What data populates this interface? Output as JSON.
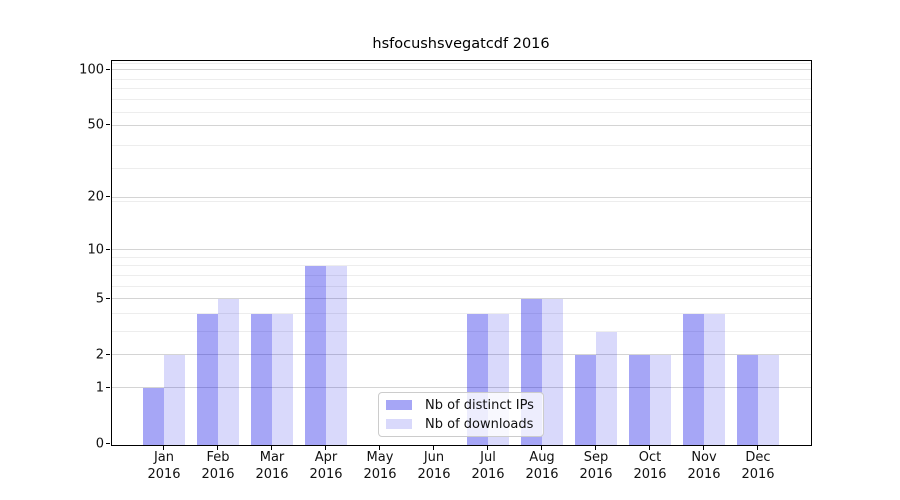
{
  "title": "hsfocushsvegatcdf 2016",
  "chart_data": {
    "type": "bar",
    "title": "hsfocushsvegatcdf 2016",
    "categories": [
      "Jan 2016",
      "Feb 2016",
      "Mar 2016",
      "Apr 2016",
      "May 2016",
      "Jun 2016",
      "Jul 2016",
      "Aug 2016",
      "Sep 2016",
      "Oct 2016",
      "Nov 2016",
      "Dec 2016"
    ],
    "series": [
      {
        "name": "Nb of distinct IPs",
        "color": "rgba(0,0,230,0.35)",
        "values": [
          1,
          4,
          4,
          8,
          0,
          0,
          4,
          5,
          2,
          2,
          4,
          2
        ]
      },
      {
        "name": "Nb of downloads",
        "color": "rgba(0,0,230,0.15)",
        "values": [
          2,
          5,
          4,
          8,
          0,
          0,
          4,
          5,
          3,
          2,
          4,
          2
        ]
      }
    ],
    "xlabel": "",
    "ylabel": "",
    "yscale": "log(1+x)",
    "yticks": [
      0,
      1,
      2,
      5,
      10,
      20,
      50,
      100
    ],
    "ylim": [
      0,
      112
    ],
    "grid": "horizontal, major and minor, light gray, behind translucent bars",
    "legend_position": "inside lower-center"
  },
  "colors": {
    "bar_distinct_ips": "rgba(0,0,230,0.35)",
    "bar_downloads": "rgba(0,0,230,0.15)",
    "grid_major": "#d4d4d4",
    "grid_minor": "#ededed",
    "spine": "#000000",
    "text": "#111111"
  }
}
